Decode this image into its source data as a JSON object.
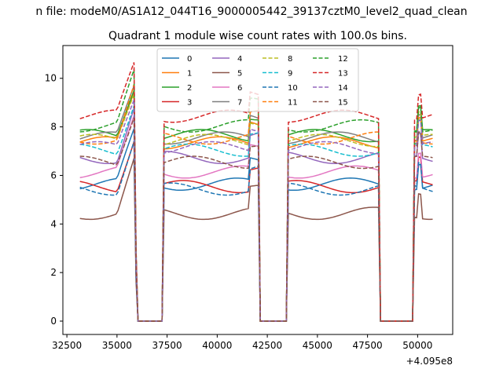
{
  "suptitle": "n file: modeM0/AS1A12_044T16_9000005442_39137cztM0_level2_quad_clean",
  "chart_data": {
    "type": "line",
    "title": "Quadrant 1 module wise count rates with 100.0s bins.",
    "xlabel": "",
    "ylabel": "",
    "x_offset_label": "+4.095e8",
    "xlim": [
      32300,
      51750
    ],
    "ylim": [
      -0.55,
      11.35
    ],
    "x_start": 33150,
    "x_end": 50750,
    "bin": 100,
    "x_ticks": [
      32500,
      35000,
      37500,
      40000,
      42500,
      45000,
      47500,
      50000
    ],
    "x_tick_labels": [
      "32500",
      "35000",
      "37500",
      "40000",
      "42500",
      "45000",
      "47500",
      "50000"
    ],
    "y_ticks": [
      0,
      2,
      4,
      6,
      8,
      10
    ],
    "y_tick_labels": [
      "0",
      "2",
      "4",
      "6",
      "8",
      "10"
    ],
    "gaps": [
      [
        36050,
        37250
      ],
      [
        42150,
        43450
      ],
      [
        48150,
        49750
      ]
    ],
    "series": [
      {
        "name": "0",
        "color": "#1f77b4",
        "dash": "solid",
        "base": 5.9
      },
      {
        "name": "1",
        "color": "#ff7f0e",
        "dash": "solid",
        "base": 7.6
      },
      {
        "name": "2",
        "color": "#2ca02c",
        "dash": "solid",
        "base": 7.9
      },
      {
        "name": "3",
        "color": "#d62728",
        "dash": "solid",
        "base": 5.8
      },
      {
        "name": "4",
        "color": "#9467bd",
        "dash": "solid",
        "base": 7.0
      },
      {
        "name": "5",
        "color": "#8c564b",
        "dash": "solid",
        "base": 4.7
      },
      {
        "name": "6",
        "color": "#e377c2",
        "dash": "solid",
        "base": 6.4
      },
      {
        "name": "7",
        "color": "#7f7f7f",
        "dash": "solid",
        "base": 7.8
      },
      {
        "name": "8",
        "color": "#bcbd22",
        "dash": "dashed",
        "base": 7.7
      },
      {
        "name": "9",
        "color": "#17becf",
        "dash": "dashed",
        "base": 7.3
      },
      {
        "name": "10",
        "color": "#1f77b4",
        "dash": "dashed",
        "base": 5.7
      },
      {
        "name": "11",
        "color": "#ff7f0e",
        "dash": "dashed",
        "base": 7.8
      },
      {
        "name": "12",
        "color": "#2ca02c",
        "dash": "dashed",
        "base": 8.3
      },
      {
        "name": "13",
        "color": "#d62728",
        "dash": "dashed",
        "base": 8.7
      },
      {
        "name": "14",
        "color": "#9467bd",
        "dash": "dashed",
        "base": 7.4
      },
      {
        "name": "15",
        "color": "#8c564b",
        "dash": "dashed",
        "base": 6.8
      }
    ],
    "legend_location": "top-center",
    "legend_columns": 4
  }
}
